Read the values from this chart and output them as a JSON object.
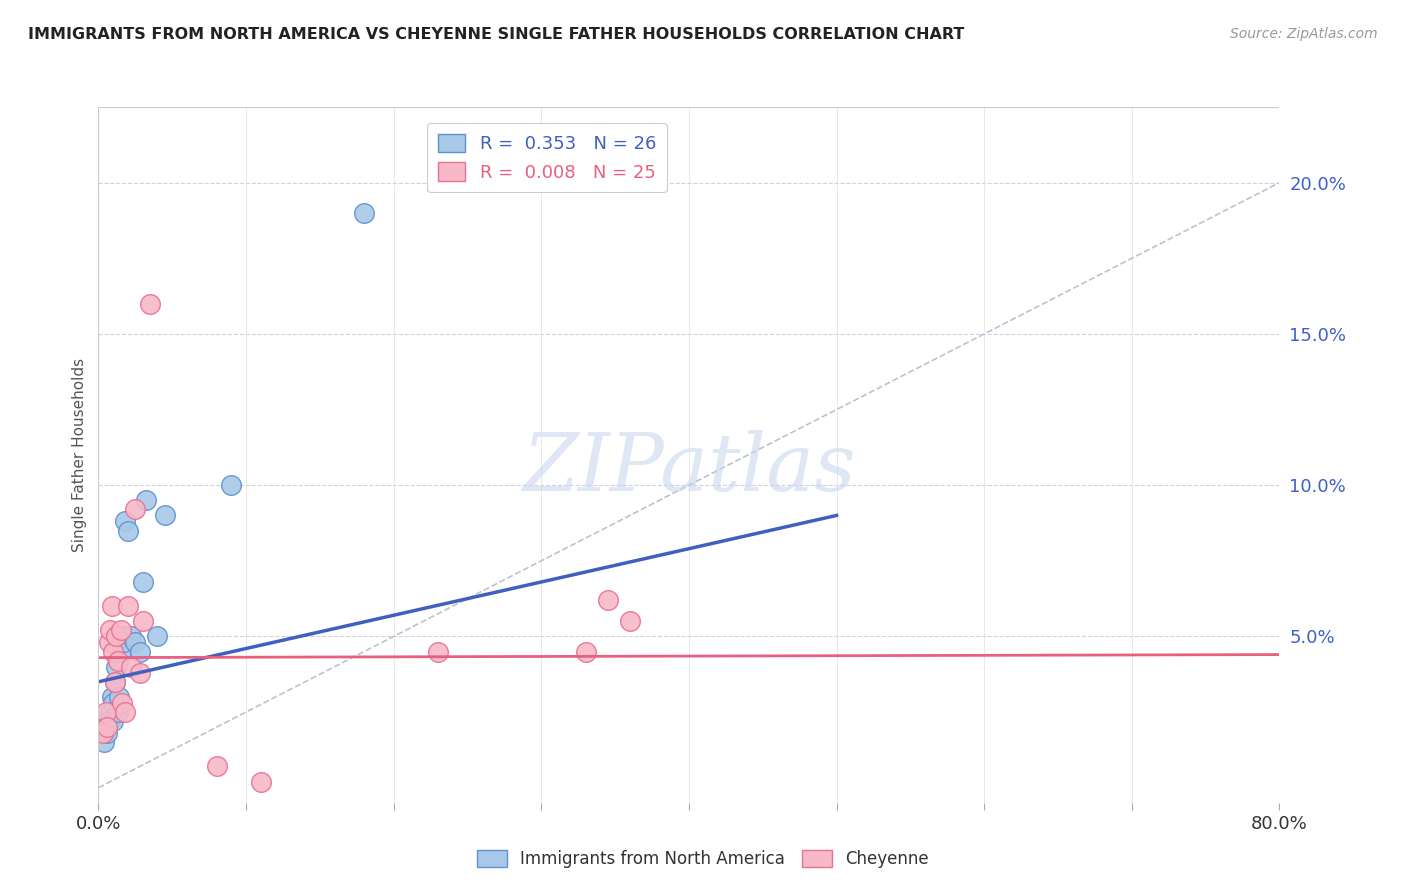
{
  "title": "IMMIGRANTS FROM NORTH AMERICA VS CHEYENNE SINGLE FATHER HOUSEHOLDS CORRELATION CHART",
  "source": "Source: ZipAtlas.com",
  "ylabel": "Single Father Households",
  "y_ticks": [
    0.05,
    0.1,
    0.15,
    0.2
  ],
  "y_tick_labels": [
    "5.0%",
    "10.0%",
    "15.0%",
    "20.0%"
  ],
  "x_ticks": [
    0.0,
    0.1,
    0.2,
    0.3,
    0.4,
    0.5,
    0.6,
    0.7,
    0.8
  ],
  "xlim": [
    0.0,
    0.8
  ],
  "ylim": [
    -0.005,
    0.225
  ],
  "legend_blue_label": "R =  0.353   N = 26",
  "legend_pink_label": "R =  0.008   N = 25",
  "blue_color": "#A8C8E8",
  "pink_color": "#F8B8C8",
  "blue_edge_color": "#6090D0",
  "pink_edge_color": "#E87090",
  "blue_line_color": "#4060C0",
  "pink_line_color": "#E86080",
  "ref_line_color": "#C0C0D0",
  "watermark_color": "#C8D8EC",
  "blue_scatter_x": [
    0.004,
    0.005,
    0.006,
    0.007,
    0.008,
    0.009,
    0.01,
    0.01,
    0.011,
    0.012,
    0.013,
    0.014,
    0.015,
    0.016,
    0.017,
    0.018,
    0.02,
    0.022,
    0.025,
    0.028,
    0.03,
    0.032,
    0.04,
    0.045,
    0.09,
    0.18
  ],
  "blue_scatter_y": [
    0.015,
    0.02,
    0.018,
    0.022,
    0.025,
    0.03,
    0.022,
    0.028,
    0.035,
    0.04,
    0.025,
    0.03,
    0.045,
    0.05,
    0.048,
    0.088,
    0.085,
    0.05,
    0.048,
    0.045,
    0.068,
    0.095,
    0.05,
    0.09,
    0.1,
    0.19
  ],
  "pink_scatter_x": [
    0.003,
    0.005,
    0.006,
    0.007,
    0.008,
    0.009,
    0.01,
    0.011,
    0.012,
    0.013,
    0.015,
    0.016,
    0.018,
    0.02,
    0.022,
    0.025,
    0.028,
    0.03,
    0.035,
    0.08,
    0.11,
    0.23,
    0.33,
    0.345,
    0.36
  ],
  "pink_scatter_y": [
    0.018,
    0.025,
    0.02,
    0.048,
    0.052,
    0.06,
    0.045,
    0.035,
    0.05,
    0.042,
    0.052,
    0.028,
    0.025,
    0.06,
    0.04,
    0.092,
    0.038,
    0.055,
    0.16,
    0.007,
    0.002,
    0.045,
    0.045,
    0.062,
    0.055
  ],
  "blue_trend_x": [
    0.0,
    0.5
  ],
  "blue_trend_y": [
    0.035,
    0.09
  ],
  "pink_trend_x": [
    0.0,
    0.8
  ],
  "pink_trend_y": [
    0.043,
    0.044
  ],
  "ref_line_x": [
    0.0,
    0.8
  ],
  "ref_line_y": [
    0.0,
    0.2
  ]
}
